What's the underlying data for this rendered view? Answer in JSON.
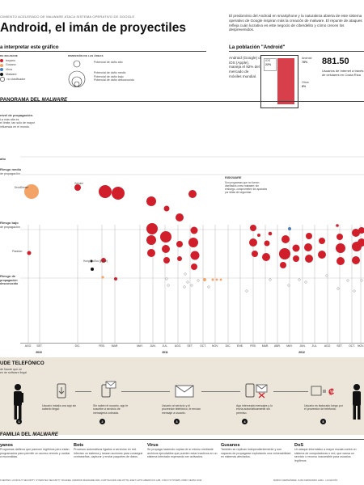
{
  "header": {
    "kicker": "CIMIENTO ACELERADO DE MALWARE ATACA SISTEMA OPERATIVO DE GOOGLE",
    "title": "Android, el imán de proyectiles",
    "intro": "El predominio del Android en smartphone y la naturaleza abierta de este sistema operativo de Google inspiran más la creación de malware. El repunte de ataques refleja cuán lucrativo es este negocio de ciberdelito y cómo crecen los desprevenidos."
  },
  "legend": {
    "title": "a interpretar este gráfico",
    "col1_head": "DE MALWARE",
    "col1_items": [
      "troyano",
      "Gusano",
      "Virus",
      "Malware",
      "no clasificador"
    ],
    "col2_head": "DIMENSIÓN DE LAS ÁREAS",
    "col2_items": [
      "Potencial de daño alto",
      "Potencial de daño medio",
      "Potencial de daño bajo",
      "Potencial de daño desconocido"
    ]
  },
  "population": {
    "title": "La población \"Android\"",
    "text": "Android (Google) o iOS (Apple), maneja el 92% del mercado de móviles mundial.",
    "ios_label": "iOS",
    "ios_value": "22%",
    "android_label": "Android",
    "android_value": "78%",
    "others_label": "Otros",
    "others_value": "8%",
    "big_number": "881.50",
    "big_text": "Usuarios de Internet a través de celulares en Costa Rica"
  },
  "panorama": {
    "title": "PANORAMA DEL MALWARE",
    "title_plain": "PANORAMA DEL ",
    "title_italic": "MALWARE",
    "y_labels": {
      "top_title": "nivel de propagación.",
      "top_sub": "La más alta es\nel límite, tan sólo de mayor\ninfluencia en el mundo.",
      "alto": "alto",
      "medio": "Riesgo medio",
      "medio_sub": "de propagación",
      "bajo": "Riesgo bajo",
      "bajo_sub": "de propagación",
      "desc": "Riesgo de",
      "desc_sub": "propagación desconocido"
    },
    "annotations": {
      "droiddream": "DroidDream",
      "geinimi": "Geinimi",
      "plankton": "Plankton",
      "hongtouTou": "Hong TouTou (Ijoiinz)",
      "fakeplayer": "Fakeplayer",
      "riskware_title": "RISKWARE",
      "riskware_text": "Son programas que no fueron diseñados como malware; sin embargo, comprometen los aparatos por fallas de seguridad."
    },
    "x_months": [
      "AGO.",
      "SET.",
      "DIC.",
      "FEB.",
      "MAR.",
      "MAY.",
      "JUN.",
      "JUL.",
      "AGO.",
      "SET.",
      "OCT.",
      "NOV.",
      "DIC.",
      "ENE.",
      "FEB.",
      "MAR.",
      "ABR.",
      "MAY.",
      "JUN.",
      "JUL.",
      "AGO.",
      "SET.",
      "OCT.",
      "NOV."
    ],
    "years": [
      "2010",
      "2011",
      "2012"
    ]
  },
  "fraud": {
    "title": "UDE TELEFÓNICO",
    "subtitle": "de fraude que se\nen de software ilegal",
    "steps": [
      {
        "num": "1",
        "text": "Usuario instala una app sin saberlo ilegal."
      },
      {
        "num": "2",
        "text": "Sin saben el usuario, app le suscribe a servicio de mensajería cobrada."
      },
      {
        "num": "3",
        "text": "Usuario al servicio y el proveedor telefónico, le envían mensaje a usuario."
      },
      {
        "num": "4",
        "text": "App intercepta mensajes y lo envía automáticamente sin permiso."
      },
      {
        "num": "5",
        "text": "Usuario es facturado luego por el proveedor de telefonía."
      }
    ]
  },
  "family": {
    "title": "FAMILIA DEL MALWARE",
    "title_plain": "FAMILIA DEL ",
    "title_italic": "MALWARE",
    "items": [
      {
        "name": "yanos",
        "text": "Programas dañinos que parecen legítimos pero están programados para permitir un acceso remoto y ocultar a escondidas."
      },
      {
        "name": "Bots",
        "text": "Procesos automáticos ligados a servicios en red. Infectan un sistema y lanzan acciones para conseguir contraseñas, capturar y enviar paquetes de datos."
      },
      {
        "name": "Virus",
        "text": "Se propaga haciendo copias de sí mismo mediante archivos ejecutables que pueden estar inactivos en un sistema infectado esperando ser activados."
      },
      {
        "name": "Gusanos",
        "text": "También se replican independientemente y son capaces de propagarse explotando una vulnerabilidad en sistemas afectados."
      },
      {
        "name": "DoS",
        "text": "Un ataque informático a mayor escala contra un sistema de computadoras o red, que causa un servicio o recurso inaccesible para usuarios legítimos."
      }
    ]
  },
  "footer": {
    "sources": "FUENTES: LOOKOUT SECURITY, SYMANTEC SECURITY, MCAFEE, ANDROID-MALWARE.ORG, FORTIGUARD, DELOITTE, ESET LATIN AMERICA'S LAB, CISCO SYSTEMS, IWMC CENSO 2011.",
    "credits": "MARCO HERNÁNDEZ, JUAN FERNANDO LARA · LA NACIÓN"
  },
  "colors": {
    "accent": "#d01f2b",
    "orange": "#f3a366",
    "blue": "#4a7fb8",
    "strip": "#ece5da"
  }
}
